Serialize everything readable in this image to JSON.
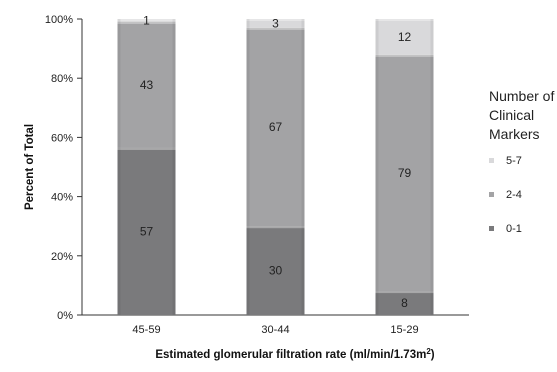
{
  "chart_data": {
    "type": "bar",
    "stacked": true,
    "categories": [
      "45-59",
      "30-44",
      "15-29"
    ],
    "series": [
      {
        "name": "0-1",
        "values": [
          57,
          30,
          8
        ],
        "color": "#7a7a7c"
      },
      {
        "name": "2-4",
        "values": [
          43,
          67,
          79
        ],
        "color": "#a3a3a5"
      },
      {
        "name": "5-7",
        "values": [
          1,
          3,
          12
        ],
        "color": "#d9d9db"
      }
    ],
    "xlabel": "Estimated glomerular filtration rate (ml/min/1.73m",
    "xlabel_sup": "2",
    "xlabel_suffix": ")",
    "ylabel": "Percent of Total",
    "ylim": [
      0,
      100
    ],
    "yticks": [
      "0%",
      "20%",
      "40%",
      "60%",
      "80%",
      "100%"
    ],
    "legend_title": [
      "Number of",
      "Clinical",
      "Markers"
    ],
    "legend_order": [
      "5-7",
      "2-4",
      "0-1"
    ],
    "legend_placement": "right",
    "grid": false
  }
}
